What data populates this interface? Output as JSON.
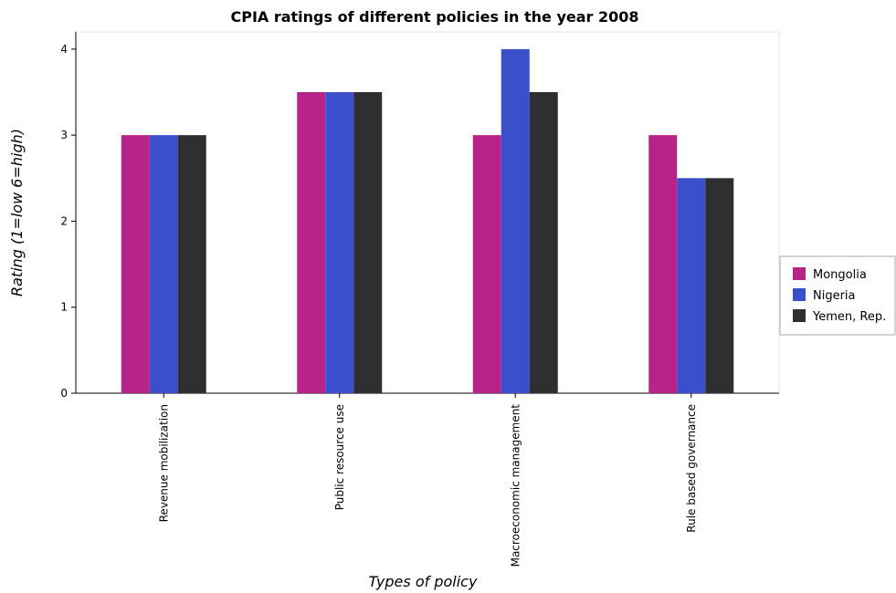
{
  "chart_data": {
    "type": "bar",
    "title": "CPIA ratings of different policies in the year 2008",
    "xlabel": "Types of policy",
    "ylabel": "Rating (1=low 6=high)",
    "categories": [
      "Revenue mobilization",
      "Public resource use",
      "Macroeconomic management",
      "Rule based governance"
    ],
    "series": [
      {
        "name": "Mongolia",
        "color": "#b8238a",
        "values": [
          3.0,
          3.5,
          3.0,
          3.0
        ]
      },
      {
        "name": "Nigeria",
        "color": "#3a4fc9",
        "values": [
          3.0,
          3.5,
          4.0,
          2.5
        ]
      },
      {
        "name": "Yemen, Rep.",
        "color": "#2e2e33",
        "values": [
          3.0,
          3.5,
          3.5,
          2.5
        ]
      }
    ],
    "ylim": [
      0,
      4.2
    ],
    "yticks": [
      0,
      1,
      2,
      3,
      4
    ],
    "grid": false,
    "legend_position": "right"
  }
}
